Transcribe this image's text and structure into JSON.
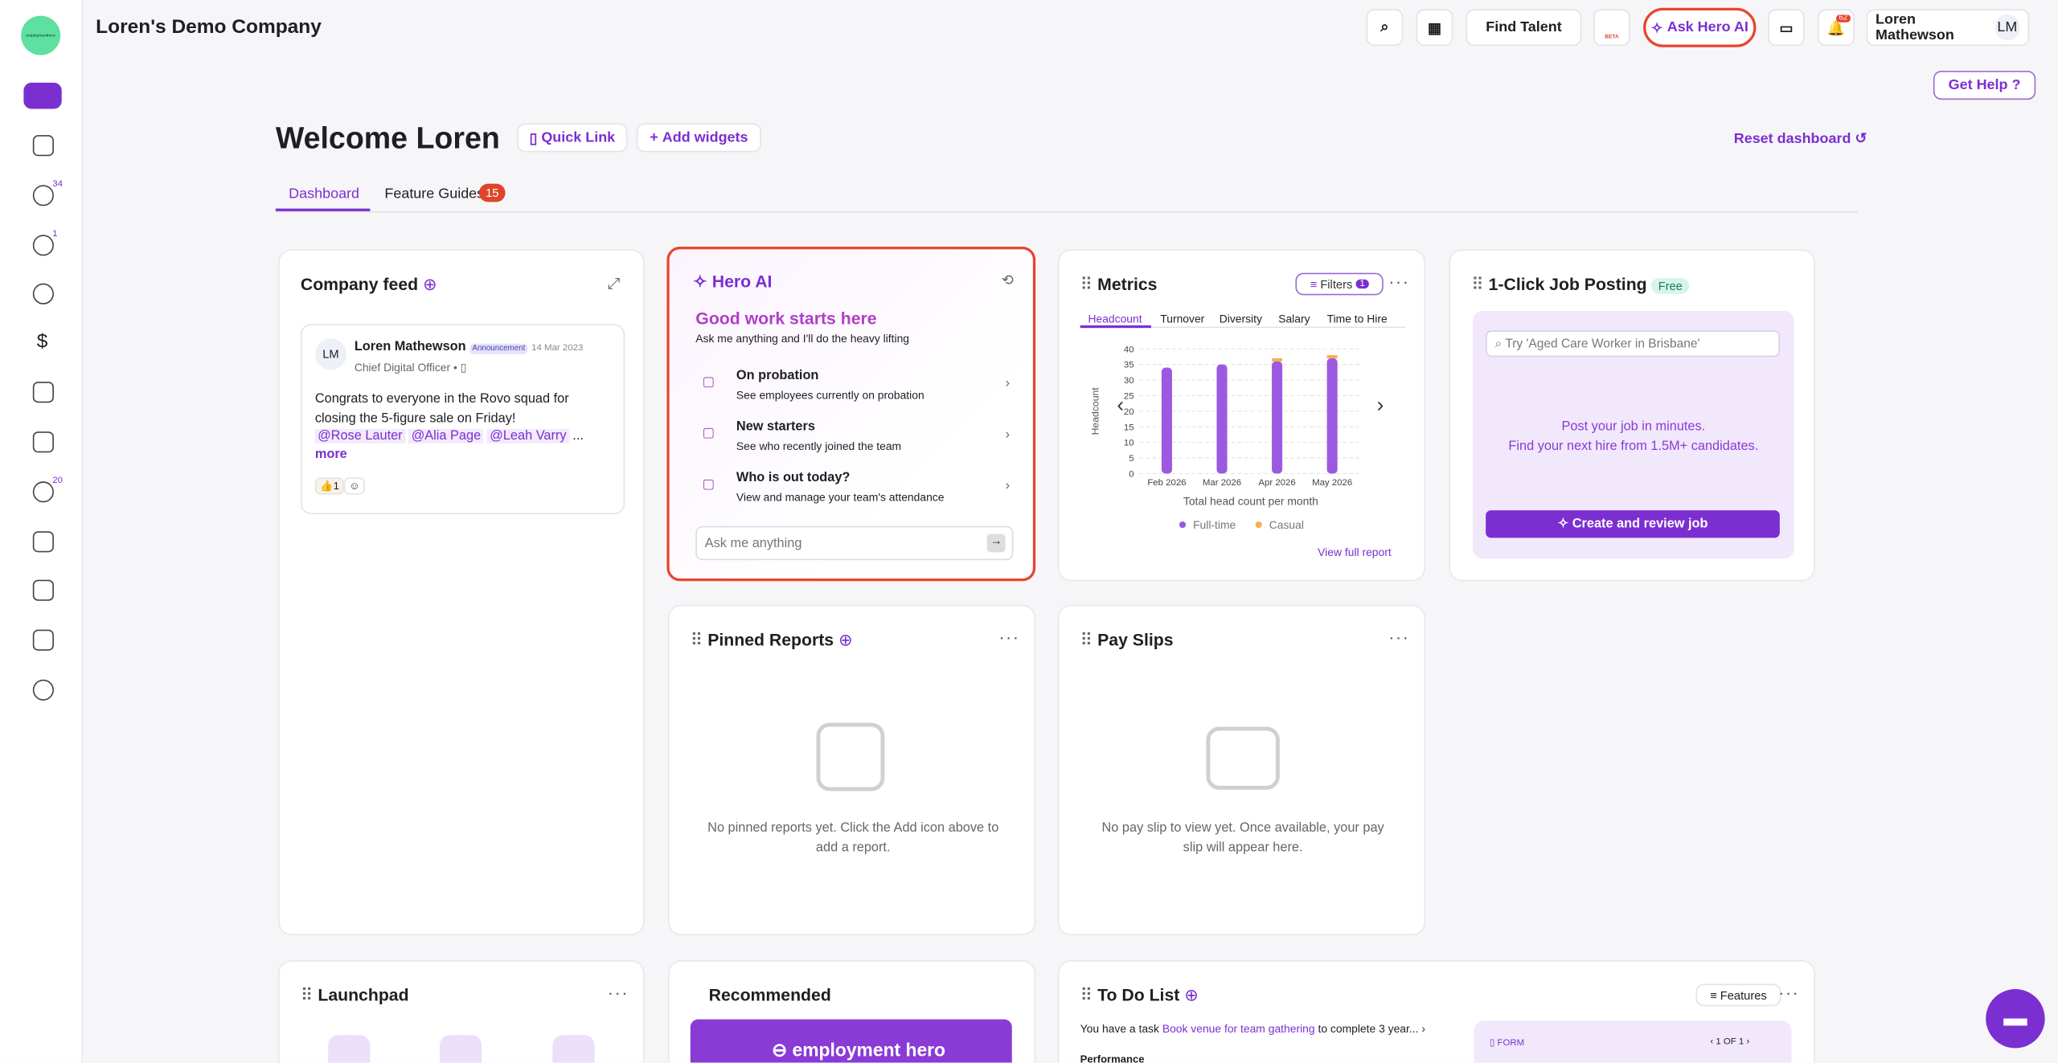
{
  "header": {
    "company": "Loren's Demo Company",
    "find_talent": "Find Talent",
    "beta": "BETA",
    "ask_hero": "Ask Hero AI",
    "notifications": 62,
    "user": "Loren Mathewson",
    "initials": "LM"
  },
  "sidebar": {
    "logo": "employmenthero",
    "badges": [
      34,
      1,
      20
    ]
  },
  "get_help": "Get Help",
  "welcome": {
    "title": "Welcome Loren",
    "quick_link": "Quick Link",
    "add_widgets": "Add widgets",
    "reset": "Reset dashboard"
  },
  "tabs": {
    "dashboard": "Dashboard",
    "feature_guides": "Feature Guides",
    "feature_guides_count": 15
  },
  "company_feed": {
    "title": "Company feed",
    "post": {
      "initials": "LM",
      "author": "Loren Mathewson",
      "tag": "Announcement",
      "date": "14 Mar 2023",
      "role": "Chief Digital Officer",
      "text": "Congrats to everyone in the Rovo squad for closing the 5-figure sale on Friday!",
      "mentions": [
        "@Rose Lauter",
        "@Alia Page",
        "@Leah Varry"
      ],
      "ellipsis": "...",
      "more": "more",
      "reaction": "👍",
      "reaction_count": 1
    }
  },
  "hero_ai": {
    "title": "Hero AI",
    "heading": "Good work starts here",
    "subheading": "Ask me anything and I'll do the heavy lifting",
    "items": [
      {
        "title": "On probation",
        "desc": "See employees currently on probation"
      },
      {
        "title": "New starters",
        "desc": "See who recently joined the team"
      },
      {
        "title": "Who is out today?",
        "desc": "View and manage your team's attendance"
      }
    ],
    "placeholder": "Ask me anything"
  },
  "metrics": {
    "title": "Metrics",
    "filters": "Filters",
    "filters_count": 1,
    "tabs": [
      "Headcount",
      "Turnover",
      "Diversity",
      "Salary",
      "Time to Hire"
    ],
    "view_report": "View full report"
  },
  "chart_data": {
    "type": "bar",
    "stacked": true,
    "y_label": "Headcount",
    "x_label": "Total head count per month",
    "categories": [
      "Feb 2026",
      "Mar 2026",
      "Apr 2026",
      "May 2026"
    ],
    "series": [
      {
        "name": "Full-time",
        "color": "#9b59e0",
        "values": [
          34,
          35,
          36,
          37
        ]
      },
      {
        "name": "Casual",
        "color": "#f5b04c",
        "values": [
          0,
          0,
          1,
          1
        ]
      }
    ],
    "ylim": [
      0,
      40
    ],
    "yticks": [
      0,
      5,
      10,
      15,
      20,
      25,
      30,
      35,
      40
    ],
    "grid": true
  },
  "job_posting": {
    "title": "1-Click Job Posting",
    "badge": "Free",
    "placeholder": "Try 'Aged Care Worker in Brisbane'",
    "line1": "Post your job in minutes.",
    "line2": "Find your next hire from 1.5M+ candidates.",
    "button": "Create and review job"
  },
  "pinned_reports": {
    "title": "Pinned Reports",
    "empty": "No pinned reports yet. Click the Add icon above to add a report."
  },
  "pay_slips": {
    "title": "Pay Slips",
    "empty": "No pay slip to view yet. Once available, your pay slip will appear here."
  },
  "launchpad": {
    "title": "Launchpad"
  },
  "recommended": {
    "title": "Recommended",
    "banner": "employment hero"
  },
  "todo": {
    "title": "To Do List",
    "features": "Features",
    "task_prefix": "You have a task",
    "task_link": "Book venue for team gathering",
    "task_suffix": "to complete 3 year...",
    "section": "Performance",
    "form": "FORM",
    "pager": "1 OF 1"
  }
}
